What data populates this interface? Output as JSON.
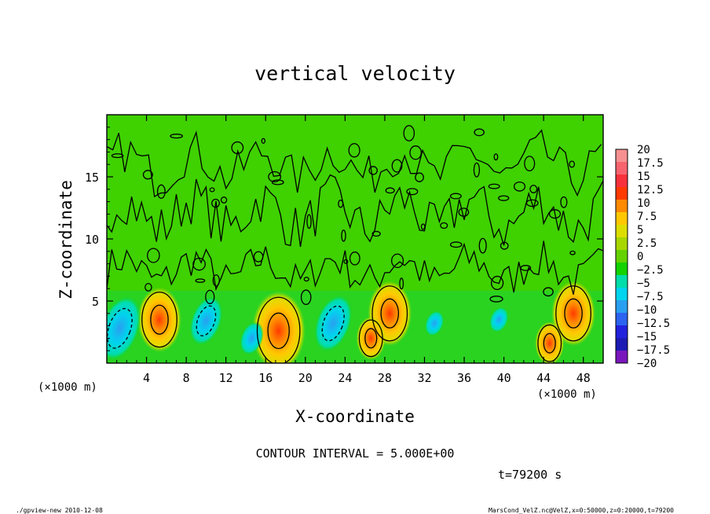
{
  "chart_data": {
    "type": "heatmap",
    "title": "vertical velocity",
    "xlabel": "X-coordinate",
    "ylabel": "Z-coordinate",
    "x_unit": "(×1000 m)",
    "z_unit": "(×1000 m)",
    "xlim": [
      0,
      50
    ],
    "ylim": [
      0,
      20
    ],
    "x_ticks": [
      "4",
      "8",
      "12",
      "16",
      "20",
      "24",
      "28",
      "32",
      "36",
      "40",
      "44",
      "48"
    ],
    "y_ticks": [
      "5",
      "10",
      "15"
    ],
    "colorbar": {
      "labels": [
        "20",
        "17.5",
        "15",
        "12.5",
        "10",
        "7.5",
        "5",
        "2.5",
        "0",
        "−2.5",
        "−5",
        "−7.5",
        "−10",
        "−12.5",
        "−15",
        "−17.5",
        "−20"
      ],
      "colors": [
        "#f79191",
        "#f7646e",
        "#f7323c",
        "#ff3a00",
        "#ff8a00",
        "#ffc800",
        "#ddde00",
        "#a8d700",
        "#64d200",
        "#14d200",
        "#00ddaa",
        "#00d4ee",
        "#2a9ff0",
        "#2c64f0",
        "#2222dc",
        "#1c1cb4",
        "#7a17bd"
      ]
    },
    "updrafts": [
      {
        "x": 5.3,
        "z": 3.5,
        "peak": 9
      },
      {
        "x": 17.3,
        "z": 2.6,
        "peak": 11
      },
      {
        "x": 28.5,
        "z": 4.0,
        "peak": 9
      },
      {
        "x": 26.6,
        "z": 2.0,
        "peak": 6
      },
      {
        "x": 47.0,
        "z": 4.0,
        "peak": 9
      },
      {
        "x": 44.6,
        "z": 1.6,
        "peak": 6
      }
    ],
    "downdrafts": [
      {
        "x": 1.3,
        "z": 2.8,
        "peak": -7
      },
      {
        "x": 10.0,
        "z": 3.4,
        "peak": -5
      },
      {
        "x": 22.8,
        "z": 3.2,
        "peak": -6
      },
      {
        "x": 14.6,
        "z": 2.0,
        "peak": -3
      },
      {
        "x": 33.0,
        "z": 3.2,
        "peak": -2
      },
      {
        "x": 39.5,
        "z": 3.5,
        "peak": -2
      }
    ]
  },
  "contour_interval": "CONTOUR INTERVAL = 5.000E+00",
  "time_label": "t=79200 s",
  "footer_left": "./gpview-new  2010-12-08",
  "footer_right": "MarsCond_VelZ.nc@VelZ,x=0:50000,z=0:20000,t=79200"
}
